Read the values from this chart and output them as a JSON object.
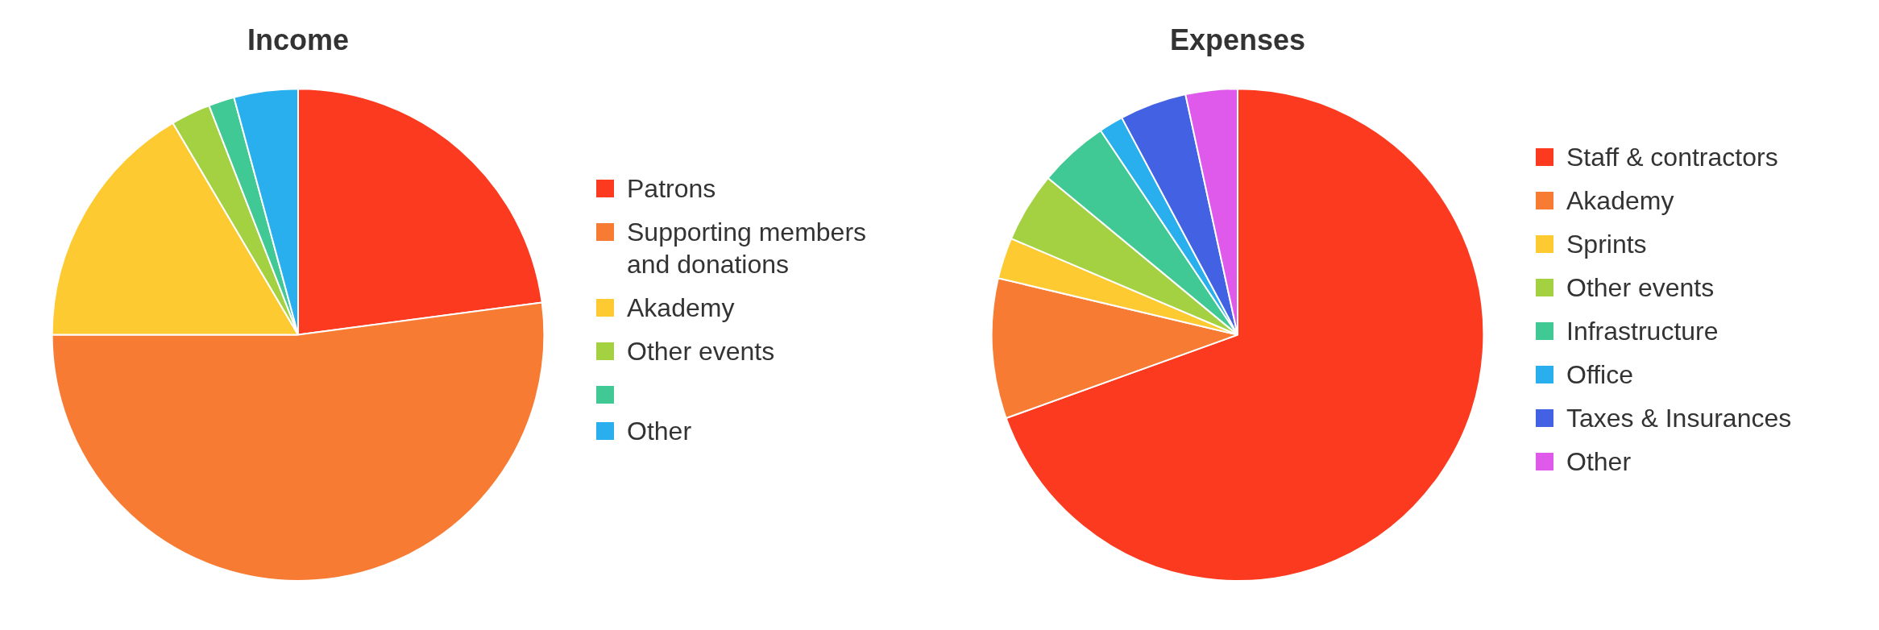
{
  "chart_data": [
    {
      "type": "pie",
      "title": "Income",
      "categories": [
        "Patrons",
        "Supporting members and donations",
        "Akademy",
        "Other events",
        null,
        "Other"
      ],
      "values": [
        22.9,
        52.1,
        16.5,
        2.6,
        1.7,
        4.2
      ],
      "colors": [
        "#fb3a1f",
        "#f77b32",
        "#fdca32",
        "#a4d142",
        "#40c995",
        "#29aeee"
      ],
      "legend": "right"
    },
    {
      "type": "pie",
      "title": "Expenses",
      "categories": [
        "Staff & contractors",
        "Akademy",
        "Sprints",
        "Other events",
        "Infrastructure",
        "Office",
        "Taxes & Insurances",
        "Other"
      ],
      "values": [
        69.5,
        9.2,
        2.7,
        4.6,
        4.6,
        1.6,
        4.4,
        3.4
      ],
      "colors": [
        "#fb3a1f",
        "#f77b32",
        "#fdca32",
        "#a4d142",
        "#40c995",
        "#29aeee",
        "#4361e3",
        "#df5aea"
      ],
      "legend": "right"
    }
  ]
}
